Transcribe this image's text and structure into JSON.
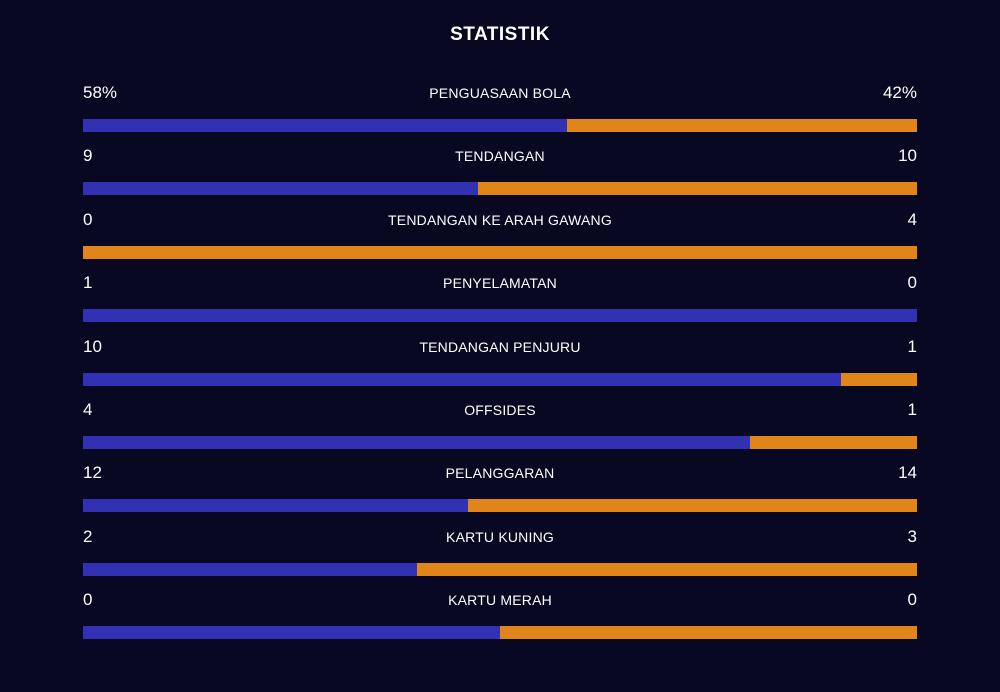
{
  "title": "STATISTIK",
  "colors": {
    "background": "#080822",
    "home": "#3230b3",
    "away": "#df851a",
    "text": "#ffffff"
  },
  "stats": [
    {
      "label": "PENGUASAAN BOLA",
      "home": "58%",
      "away": "42%",
      "home_share": 0.58
    },
    {
      "label": "TENDANGAN",
      "home": "9",
      "away": "10",
      "home_share": 0.474
    },
    {
      "label": "TENDANGAN KE ARAH GAWANG",
      "home": "0",
      "away": "4",
      "home_share": 0.0
    },
    {
      "label": "PENYELAMATAN",
      "home": "1",
      "away": "0",
      "home_share": 1.0
    },
    {
      "label": "TENDANGAN PENJURU",
      "home": "10",
      "away": "1",
      "home_share": 0.909
    },
    {
      "label": "OFFSIDES",
      "home": "4",
      "away": "1",
      "home_share": 0.8
    },
    {
      "label": "PELANGGARAN",
      "home": "12",
      "away": "14",
      "home_share": 0.462
    },
    {
      "label": "KARTU KUNING",
      "home": "2",
      "away": "3",
      "home_share": 0.4
    },
    {
      "label": "KARTU MERAH",
      "home": "0",
      "away": "0",
      "home_share": 0.5
    }
  ]
}
